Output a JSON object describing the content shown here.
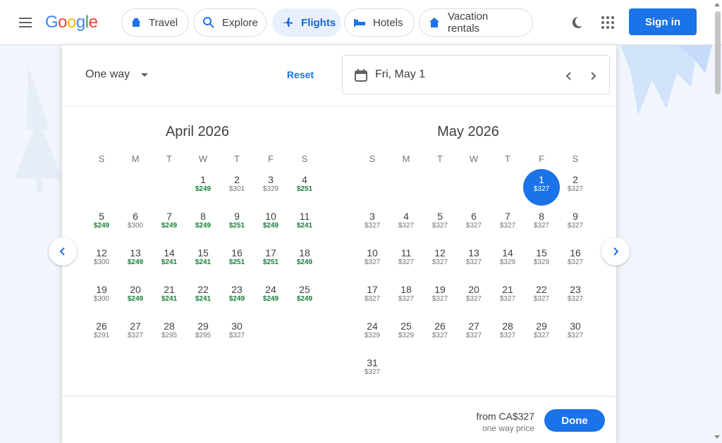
{
  "header": {
    "logo": [
      "G",
      "o",
      "o",
      "g",
      "l",
      "e"
    ],
    "logo_colors": [
      "#4285f4",
      "#ea4335",
      "#fbbc05",
      "#4285f4",
      "#34a853",
      "#ea4335"
    ],
    "nav": [
      {
        "label": "Travel",
        "icon": "travel-tag-icon",
        "active": false
      },
      {
        "label": "Explore",
        "icon": "explore-search-icon",
        "active": false
      },
      {
        "label": "Flights",
        "icon": "airplane-icon",
        "active": true
      },
      {
        "label": "Hotels",
        "icon": "bed-icon",
        "active": false
      },
      {
        "label": "Vacation rentals",
        "icon": "house-icon",
        "active": false
      }
    ],
    "sign_in": "Sign in"
  },
  "toolbar": {
    "trip_type": "One way",
    "reset": "Reset",
    "date_value": "Fri, May 1"
  },
  "calendar": {
    "weekdays": [
      "S",
      "M",
      "T",
      "W",
      "T",
      "F",
      "S"
    ],
    "months": [
      {
        "title": "April 2026",
        "start_weekday": 3,
        "days": [
          {
            "d": "1",
            "p": "$249",
            "low": true
          },
          {
            "d": "2",
            "p": "$301",
            "low": false
          },
          {
            "d": "3",
            "p": "$329",
            "low": false
          },
          {
            "d": "4",
            "p": "$251",
            "low": true
          },
          {
            "d": "5",
            "p": "$249",
            "low": true
          },
          {
            "d": "6",
            "p": "$300",
            "low": false
          },
          {
            "d": "7",
            "p": "$249",
            "low": true
          },
          {
            "d": "8",
            "p": "$249",
            "low": true
          },
          {
            "d": "9",
            "p": "$251",
            "low": true
          },
          {
            "d": "10",
            "p": "$249",
            "low": true
          },
          {
            "d": "11",
            "p": "$241",
            "low": true
          },
          {
            "d": "12",
            "p": "$300",
            "low": false
          },
          {
            "d": "13",
            "p": "$249",
            "low": true
          },
          {
            "d": "14",
            "p": "$241",
            "low": true
          },
          {
            "d": "15",
            "p": "$241",
            "low": true
          },
          {
            "d": "16",
            "p": "$251",
            "low": true
          },
          {
            "d": "17",
            "p": "$251",
            "low": true
          },
          {
            "d": "18",
            "p": "$249",
            "low": true
          },
          {
            "d": "19",
            "p": "$300",
            "low": false
          },
          {
            "d": "20",
            "p": "$249",
            "low": true
          },
          {
            "d": "21",
            "p": "$241",
            "low": true
          },
          {
            "d": "22",
            "p": "$241",
            "low": true
          },
          {
            "d": "23",
            "p": "$249",
            "low": true
          },
          {
            "d": "24",
            "p": "$249",
            "low": true
          },
          {
            "d": "25",
            "p": "$249",
            "low": true
          },
          {
            "d": "26",
            "p": "$291",
            "low": false
          },
          {
            "d": "27",
            "p": "$327",
            "low": false
          },
          {
            "d": "28",
            "p": "$295",
            "low": false
          },
          {
            "d": "29",
            "p": "$295",
            "low": false
          },
          {
            "d": "30",
            "p": "$327",
            "low": false
          }
        ]
      },
      {
        "title": "May 2026",
        "start_weekday": 5,
        "days": [
          {
            "d": "1",
            "p": "$327",
            "low": false,
            "sel": true
          },
          {
            "d": "2",
            "p": "$327",
            "low": false
          },
          {
            "d": "3",
            "p": "$327",
            "low": false
          },
          {
            "d": "4",
            "p": "$327",
            "low": false
          },
          {
            "d": "5",
            "p": "$327",
            "low": false
          },
          {
            "d": "6",
            "p": "$327",
            "low": false
          },
          {
            "d": "7",
            "p": "$327",
            "low": false
          },
          {
            "d": "8",
            "p": "$327",
            "low": false
          },
          {
            "d": "9",
            "p": "$327",
            "low": false
          },
          {
            "d": "10",
            "p": "$327",
            "low": false
          },
          {
            "d": "11",
            "p": "$327",
            "low": false
          },
          {
            "d": "12",
            "p": "$327",
            "low": false
          },
          {
            "d": "13",
            "p": "$327",
            "low": false
          },
          {
            "d": "14",
            "p": "$329",
            "low": false
          },
          {
            "d": "15",
            "p": "$329",
            "low": false
          },
          {
            "d": "16",
            "p": "$327",
            "low": false
          },
          {
            "d": "17",
            "p": "$327",
            "low": false
          },
          {
            "d": "18",
            "p": "$327",
            "low": false
          },
          {
            "d": "19",
            "p": "$327",
            "low": false
          },
          {
            "d": "20",
            "p": "$327",
            "low": false
          },
          {
            "d": "21",
            "p": "$327",
            "low": false
          },
          {
            "d": "22",
            "p": "$327",
            "low": false
          },
          {
            "d": "23",
            "p": "$327",
            "low": false
          },
          {
            "d": "24",
            "p": "$329",
            "low": false
          },
          {
            "d": "25",
            "p": "$329",
            "low": false
          },
          {
            "d": "26",
            "p": "$327",
            "low": false
          },
          {
            "d": "27",
            "p": "$327",
            "low": false
          },
          {
            "d": "28",
            "p": "$327",
            "low": false
          },
          {
            "d": "29",
            "p": "$327",
            "low": false
          },
          {
            "d": "30",
            "p": "$327",
            "low": false
          },
          {
            "d": "31",
            "p": "$327",
            "low": false
          }
        ]
      }
    ]
  },
  "footer": {
    "from_price": "from CA$327",
    "price_note": "one way price",
    "done": "Done"
  },
  "colors": {
    "accent": "#1a73e8",
    "low_price": "#188038"
  }
}
